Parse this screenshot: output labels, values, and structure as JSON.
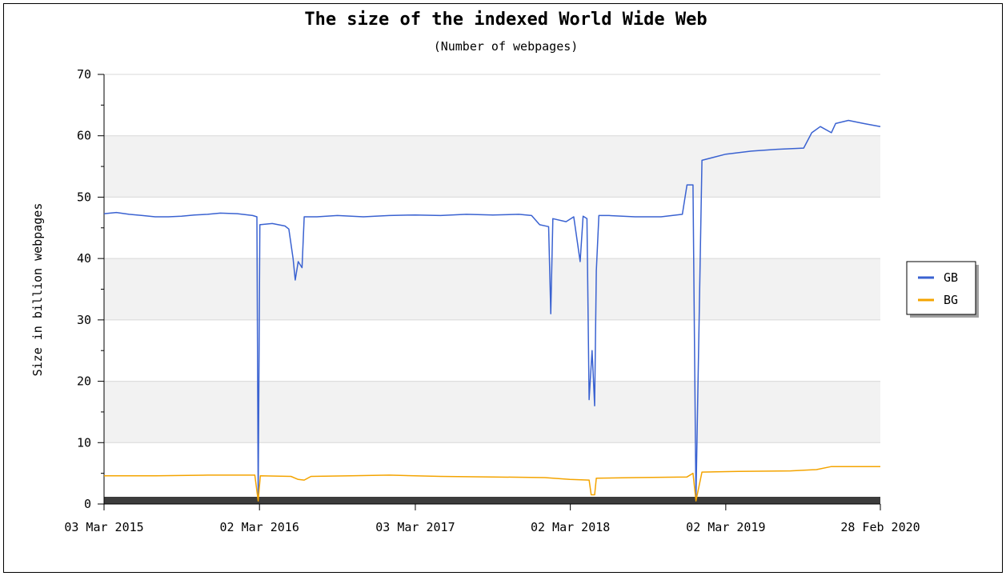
{
  "chart_data": {
    "type": "line",
    "title": "The size of the indexed World Wide Web",
    "subtitle": "(Number of webpages)",
    "ylabel": "Size in billion webpages",
    "xlabel": "",
    "ylim": [
      0,
      70
    ],
    "yticks": [
      0,
      10,
      20,
      30,
      40,
      50,
      60,
      70
    ],
    "xlim": [
      "2015-03-03",
      "2020-02-28"
    ],
    "xtick_labels": [
      {
        "date": "2015-03-03",
        "label": "03 Mar 2015"
      },
      {
        "date": "2016-03-02",
        "label": "02 Mar 2016"
      },
      {
        "date": "2017-03-03",
        "label": "03 Mar 2017"
      },
      {
        "date": "2018-03-02",
        "label": "02 Mar 2018"
      },
      {
        "date": "2019-03-02",
        "label": "02 Mar 2019"
      },
      {
        "date": "2020-02-28",
        "label": "28 Feb 2020"
      }
    ],
    "grid": "horizontal bands",
    "legend_position": "right",
    "series": [
      {
        "name": "GB",
        "color": "#3a62d1",
        "points": [
          [
            "2015-03-03",
            47.3
          ],
          [
            "2015-04-01",
            47.5
          ],
          [
            "2015-05-01",
            47.2
          ],
          [
            "2015-06-01",
            47.0
          ],
          [
            "2015-07-01",
            46.8
          ],
          [
            "2015-08-01",
            46.8
          ],
          [
            "2015-09-01",
            46.9
          ],
          [
            "2015-10-01",
            47.1
          ],
          [
            "2015-11-01",
            47.2
          ],
          [
            "2015-12-01",
            47.4
          ],
          [
            "2016-01-10",
            47.3
          ],
          [
            "2016-02-15",
            47.0
          ],
          [
            "2016-02-25",
            46.8
          ],
          [
            "2016-02-28",
            0.8
          ],
          [
            "2016-03-03",
            45.5
          ],
          [
            "2016-04-01",
            45.7
          ],
          [
            "2016-05-01",
            45.3
          ],
          [
            "2016-05-10",
            44.8
          ],
          [
            "2016-05-20",
            40.0
          ],
          [
            "2016-05-25",
            36.5
          ],
          [
            "2016-06-01",
            39.5
          ],
          [
            "2016-06-10",
            38.5
          ],
          [
            "2016-06-15",
            46.8
          ],
          [
            "2016-07-15",
            46.8
          ],
          [
            "2016-09-01",
            47.0
          ],
          [
            "2016-11-01",
            46.8
          ],
          [
            "2017-01-01",
            47.0
          ],
          [
            "2017-03-03",
            47.1
          ],
          [
            "2017-05-01",
            47.0
          ],
          [
            "2017-07-01",
            47.2
          ],
          [
            "2017-09-01",
            47.1
          ],
          [
            "2017-11-01",
            47.2
          ],
          [
            "2017-12-01",
            47.0
          ],
          [
            "2017-12-20",
            45.5
          ],
          [
            "2018-01-10",
            45.2
          ],
          [
            "2018-01-15",
            31.0
          ],
          [
            "2018-01-20",
            46.5
          ],
          [
            "2018-02-20",
            46.0
          ],
          [
            "2018-03-10",
            46.8
          ],
          [
            "2018-03-25",
            39.5
          ],
          [
            "2018-04-01",
            46.9
          ],
          [
            "2018-04-10",
            46.5
          ],
          [
            "2018-04-15",
            17.0
          ],
          [
            "2018-04-22",
            25.0
          ],
          [
            "2018-04-28",
            16.0
          ],
          [
            "2018-05-02",
            38.0
          ],
          [
            "2018-05-08",
            47.0
          ],
          [
            "2018-06-01",
            47.0
          ],
          [
            "2018-08-01",
            46.8
          ],
          [
            "2018-10-01",
            46.8
          ],
          [
            "2018-11-20",
            47.2
          ],
          [
            "2018-12-01",
            52.0
          ],
          [
            "2018-12-15",
            52.0
          ],
          [
            "2018-12-22",
            0.8
          ],
          [
            "2019-01-05",
            56.0
          ],
          [
            "2019-03-02",
            57.0
          ],
          [
            "2019-05-01",
            57.5
          ],
          [
            "2019-07-01",
            57.8
          ],
          [
            "2019-09-01",
            58.0
          ],
          [
            "2019-09-20",
            60.5
          ],
          [
            "2019-10-10",
            61.5
          ],
          [
            "2019-11-05",
            60.5
          ],
          [
            "2019-11-15",
            62.0
          ],
          [
            "2019-12-15",
            62.5
          ],
          [
            "2020-01-20",
            62.0
          ],
          [
            "2020-02-28",
            61.5
          ]
        ]
      },
      {
        "name": "BG",
        "color": "#f4a400",
        "points": [
          [
            "2015-03-03",
            4.6
          ],
          [
            "2015-07-01",
            4.6
          ],
          [
            "2015-11-01",
            4.7
          ],
          [
            "2016-02-20",
            4.7
          ],
          [
            "2016-02-28",
            0.5
          ],
          [
            "2016-03-04",
            4.6
          ],
          [
            "2016-05-15",
            4.5
          ],
          [
            "2016-06-01",
            4.0
          ],
          [
            "2016-06-15",
            3.9
          ],
          [
            "2016-07-01",
            4.5
          ],
          [
            "2016-10-01",
            4.6
          ],
          [
            "2017-01-01",
            4.7
          ],
          [
            "2017-05-01",
            4.5
          ],
          [
            "2017-09-01",
            4.4
          ],
          [
            "2018-01-01",
            4.3
          ],
          [
            "2018-03-01",
            4.0
          ],
          [
            "2018-04-15",
            3.9
          ],
          [
            "2018-04-20",
            1.5
          ],
          [
            "2018-04-28",
            1.5
          ],
          [
            "2018-05-02",
            4.2
          ],
          [
            "2018-08-01",
            4.3
          ],
          [
            "2018-12-01",
            4.4
          ],
          [
            "2018-12-15",
            5.0
          ],
          [
            "2018-12-22",
            0.5
          ],
          [
            "2019-01-05",
            5.2
          ],
          [
            "2019-04-01",
            5.3
          ],
          [
            "2019-08-01",
            5.4
          ],
          [
            "2019-10-01",
            5.6
          ],
          [
            "2019-11-05",
            6.1
          ],
          [
            "2020-02-28",
            6.1
          ]
        ]
      }
    ]
  }
}
